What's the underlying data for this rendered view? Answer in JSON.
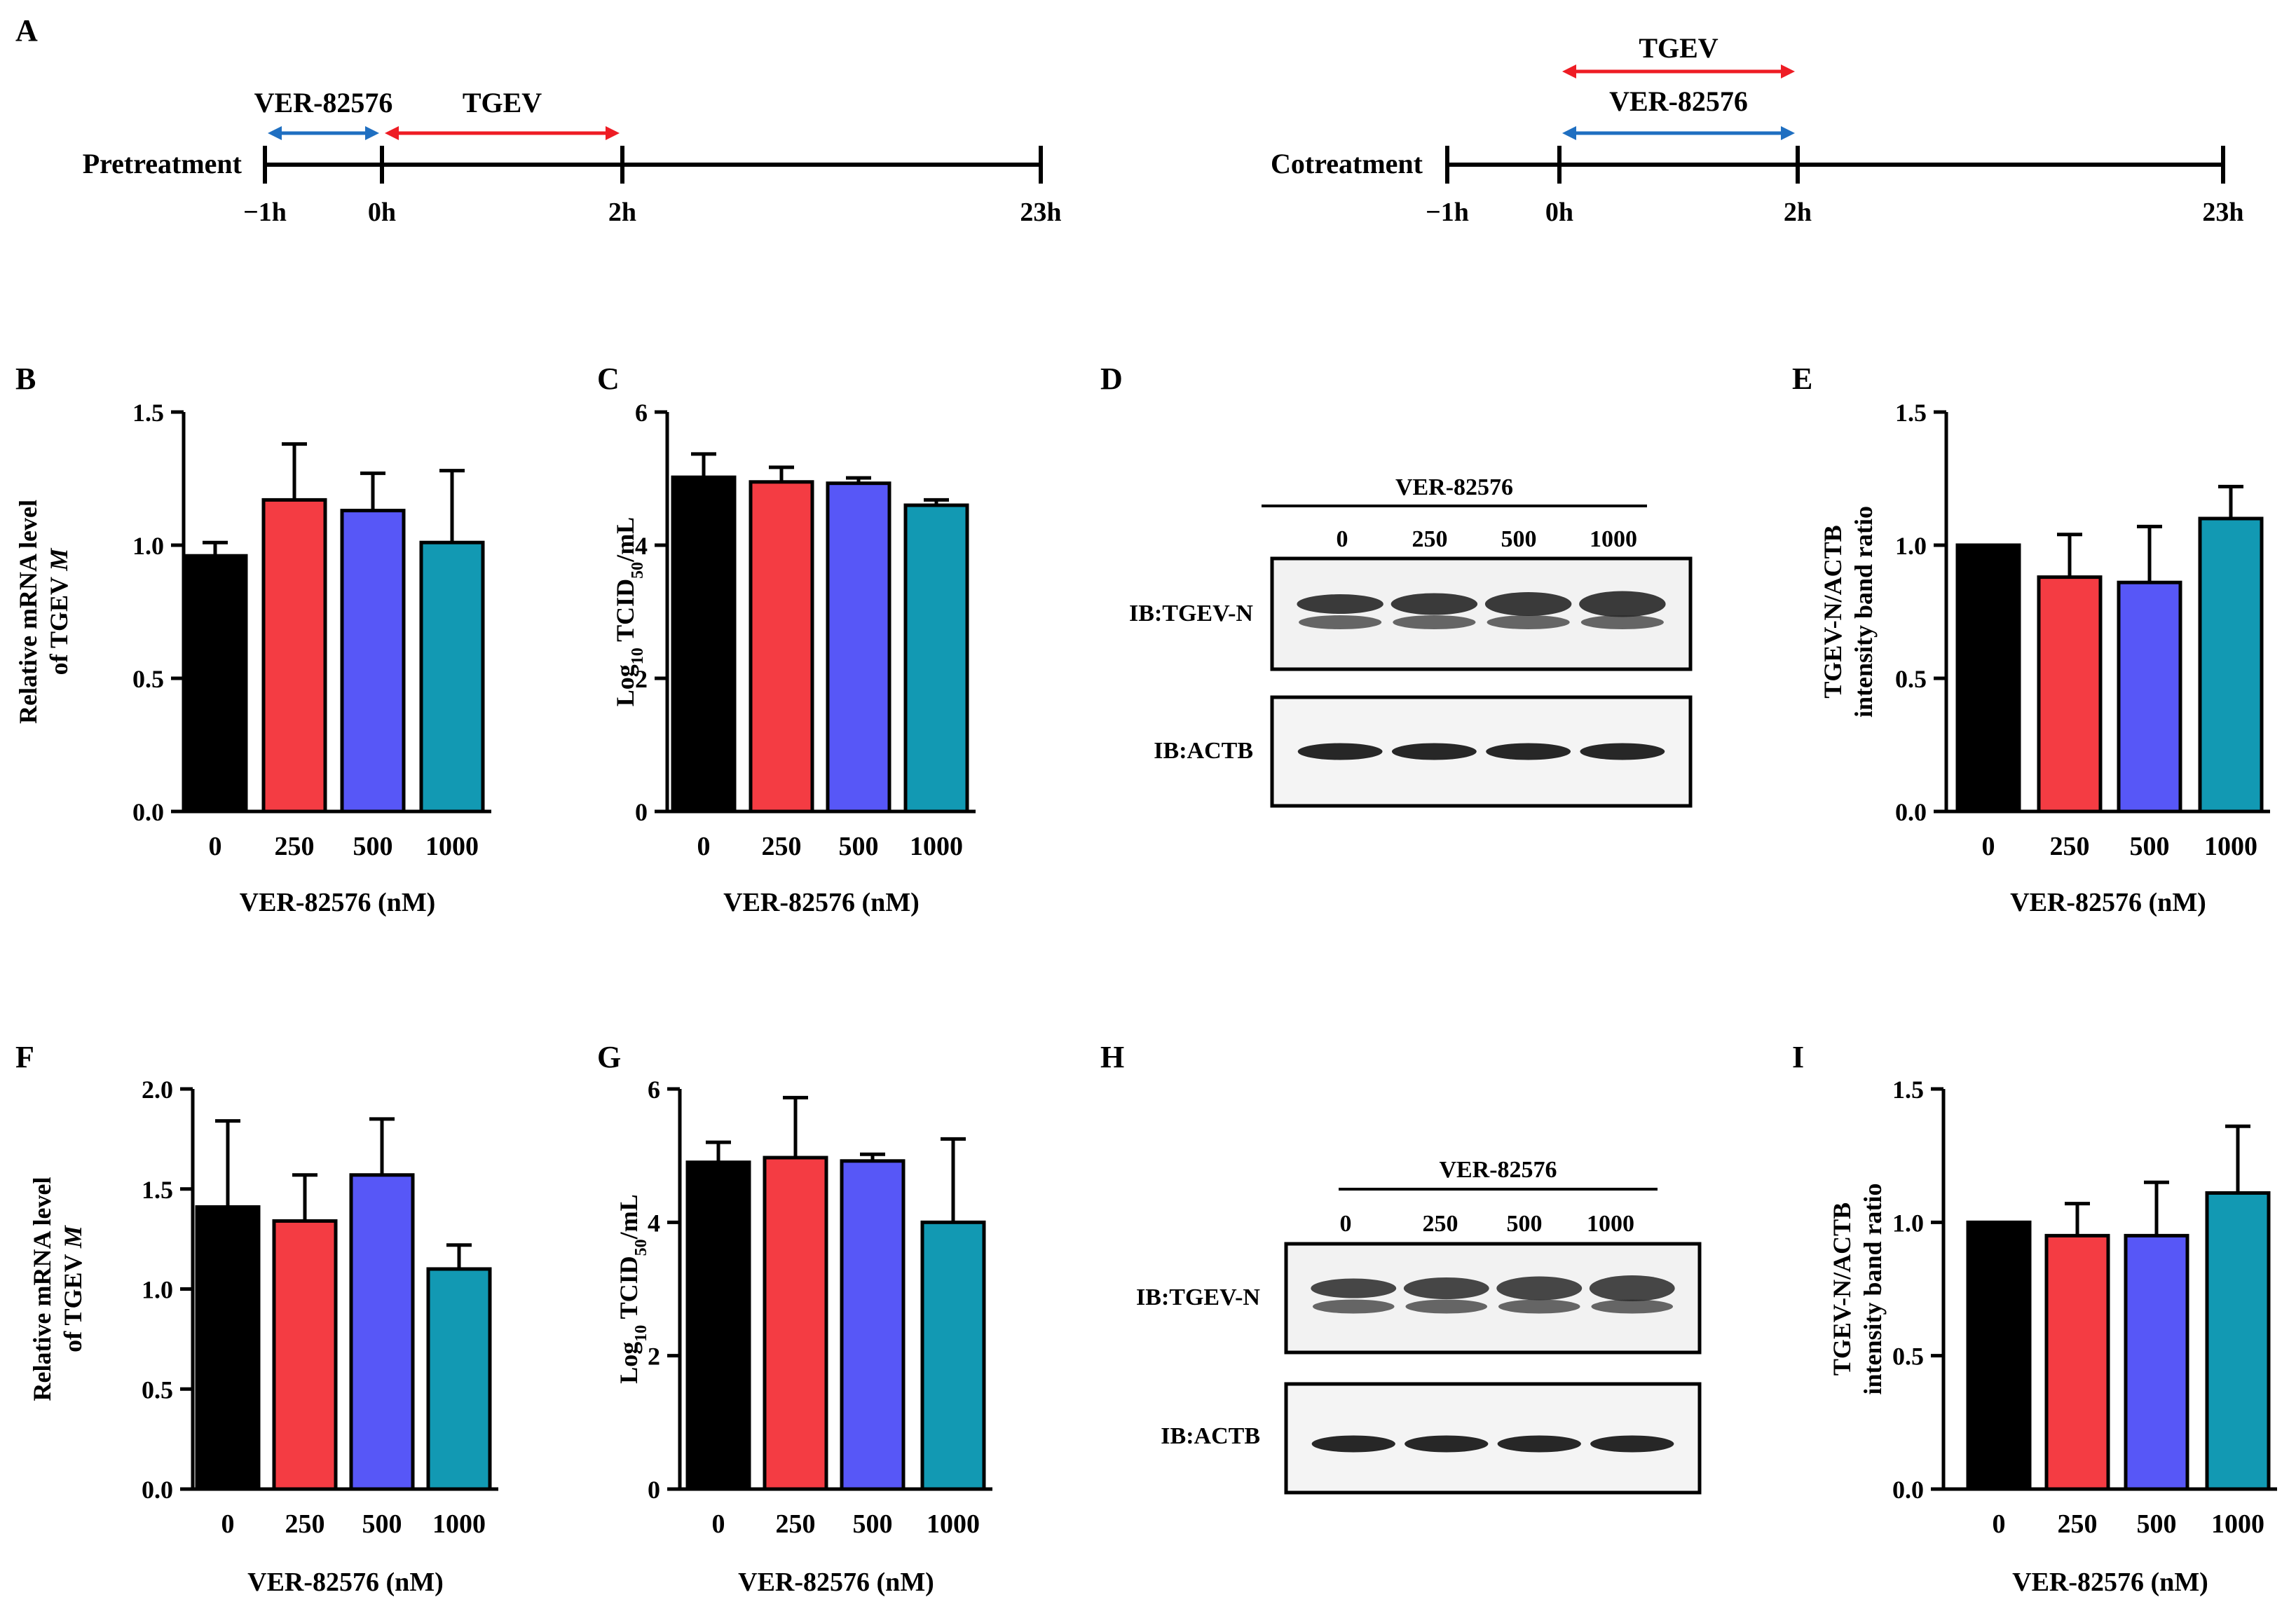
{
  "colors": {
    "black": "#000000",
    "red": "#f43c43",
    "purple": "#5757f7",
    "teal": "#1299b3",
    "arrow_red": "#ee1c24",
    "arrow_blue": "#1f6fc1",
    "label_blue": "#1f8cc6"
  },
  "timelines": [
    {
      "panel": "A",
      "label": "Pretreatment",
      "ticks": [
        "−1h",
        "0h",
        "2h",
        "23h"
      ],
      "arrows": [
        {
          "text": "VER-82576",
          "color": "label_blue",
          "from": "−1h",
          "to": "0h"
        },
        {
          "text": "TGEV",
          "color": "arrow_red",
          "from": "0h",
          "to": "2h"
        }
      ]
    },
    {
      "panel": "",
      "label": "Cotreatment",
      "ticks": [
        "−1h",
        "0h",
        "2h",
        "23h"
      ],
      "arrows": [
        {
          "text": "TGEV",
          "color": "arrow_red",
          "from": "0h",
          "to": "2h"
        },
        {
          "text": "VER-82576",
          "color": "label_blue",
          "from": "0h",
          "to": "2h"
        }
      ]
    }
  ],
  "chart_data": [
    {
      "panel": "B",
      "type": "bar",
      "categories": [
        "0",
        "250",
        "500",
        "1000"
      ],
      "values": [
        0.96,
        1.17,
        1.13,
        1.01
      ],
      "errors": [
        0.05,
        0.21,
        0.14,
        0.27
      ],
      "ylim": [
        0,
        1.5
      ],
      "yticks": [
        "0.0",
        "0.5",
        "1.0",
        "1.5"
      ],
      "ylabel": [
        "Relative mRNA level",
        "of TGEV M"
      ],
      "xlabel": "VER-82576 (nM)"
    },
    {
      "panel": "C",
      "type": "bar",
      "categories": [
        "0",
        "250",
        "500",
        "1000"
      ],
      "values": [
        5.02,
        4.95,
        4.93,
        4.6
      ],
      "errors": [
        0.35,
        0.22,
        0.08,
        0.08
      ],
      "ylim": [
        0,
        6
      ],
      "yticks": [
        "0",
        "2",
        "4",
        "6"
      ],
      "ylabel": [
        "Log10 TCID50/mL"
      ],
      "xlabel": "VER-82576 (nM)"
    },
    {
      "panel": "E",
      "type": "bar",
      "categories": [
        "0",
        "250",
        "500",
        "1000"
      ],
      "values": [
        1.0,
        0.88,
        0.86,
        1.1
      ],
      "errors": [
        0.0,
        0.16,
        0.21,
        0.12
      ],
      "ylim": [
        0,
        1.5
      ],
      "yticks": [
        "0.0",
        "0.5",
        "1.0",
        "1.5"
      ],
      "ylabel": [
        "TGEV-N/ACTB",
        "intensity band ratio"
      ],
      "xlabel": "VER-82576 (nM)"
    },
    {
      "panel": "F",
      "type": "bar",
      "categories": [
        "0",
        "250",
        "500",
        "1000"
      ],
      "values": [
        1.41,
        1.34,
        1.57,
        1.1
      ],
      "errors": [
        0.43,
        0.23,
        0.28,
        0.12
      ],
      "ylim": [
        0,
        2.0
      ],
      "yticks": [
        "0.0",
        "0.5",
        "1.0",
        "1.5",
        "2.0"
      ],
      "ylabel": [
        "Relative mRNA level",
        "of TGEV M"
      ],
      "xlabel": "VER-82576 (nM)"
    },
    {
      "panel": "G",
      "type": "bar",
      "categories": [
        "0",
        "250",
        "500",
        "1000"
      ],
      "values": [
        4.9,
        4.97,
        4.92,
        4.0
      ],
      "errors": [
        0.3,
        0.9,
        0.1,
        1.25
      ],
      "ylim": [
        0,
        6
      ],
      "yticks": [
        "0",
        "2",
        "4",
        "6"
      ],
      "ylabel": [
        "Log10 TCID50/mL"
      ],
      "xlabel": "VER-82576 (nM)"
    },
    {
      "panel": "I",
      "type": "bar",
      "categories": [
        "0",
        "250",
        "500",
        "1000"
      ],
      "values": [
        1.0,
        0.95,
        0.95,
        1.11
      ],
      "errors": [
        0.0,
        0.12,
        0.2,
        0.25
      ],
      "ylim": [
        0,
        1.5
      ],
      "yticks": [
        "0.0",
        "0.5",
        "1.0",
        "1.5"
      ],
      "ylabel": [
        "TGEV-N/ACTB",
        "intensity band ratio"
      ],
      "xlabel": "VER-82576 (nM)"
    }
  ],
  "blots": [
    {
      "panel": "D",
      "header": "VER-82576",
      "lanes": [
        "0",
        "250",
        "500",
        "1000"
      ],
      "rows": [
        "IB:TGEV-N",
        "IB:ACTB"
      ]
    },
    {
      "panel": "H",
      "header": "VER-82576",
      "lanes": [
        "0",
        "250",
        "500",
        "1000"
      ],
      "rows": [
        "IB:TGEV-N",
        "IB:ACTB"
      ]
    }
  ]
}
